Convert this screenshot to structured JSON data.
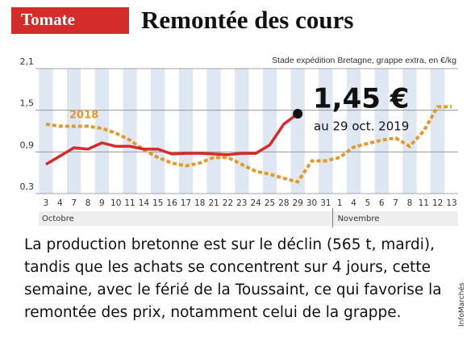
{
  "chart_data": {
    "type": "line",
    "tag": "Tomate",
    "title": "Remontée des cours",
    "subtitle": "Stade expédition Bretagne, grappe extra, en €/kg",
    "categories": [
      "3",
      "4",
      "7",
      "8",
      "9",
      "10",
      "11",
      "14",
      "15",
      "16",
      "17",
      "18",
      "21",
      "22",
      "23",
      "24",
      "25",
      "28",
      "29",
      "30",
      "31",
      "1",
      "4",
      "5",
      "6",
      "7",
      "8",
      "11",
      "12",
      "13"
    ],
    "months": [
      "Octobre",
      "Novembre"
    ],
    "series": [
      {
        "color": "#d42b2b",
        "dashed": false,
        "values": [
          0.72,
          0.84,
          0.96,
          0.94,
          1.03,
          0.98,
          0.98,
          0.94,
          0.94,
          0.87,
          0.88,
          0.88,
          0.87,
          0.86,
          0.88,
          0.88,
          1.0,
          1.3,
          1.45,
          null,
          null,
          null,
          null,
          null,
          null,
          null,
          null,
          null,
          null,
          null
        ]
      },
      {
        "name": "2018",
        "color": "#e39a2a",
        "dashed": true,
        "values": [
          1.3,
          1.27,
          1.27,
          1.27,
          1.24,
          1.17,
          1.07,
          0.93,
          0.82,
          0.74,
          0.7,
          0.74,
          0.82,
          0.82,
          0.72,
          0.62,
          0.58,
          0.52,
          0.47,
          0.77,
          0.77,
          0.82,
          0.97,
          1.02,
          1.07,
          1.1,
          0.98,
          1.2,
          1.55,
          1.55
        ]
      }
    ],
    "ylim": [
      0.3,
      2.1
    ],
    "yticks": [
      {
        "value": 0.3,
        "label": "0,3"
      },
      {
        "value": 0.9,
        "label": "0,9"
      },
      {
        "value": 1.5,
        "label": "1,5"
      },
      {
        "value": 2.1,
        "label": "2,1"
      }
    ],
    "grid": true,
    "annotations": [
      "1,45 €",
      "au 29 oct. 2019"
    ],
    "paragraph": [
      "La production bretonne est sur le déclin (565 t, mardi),",
      "tandis que les achats se concentrent sur 4 jours, cette",
      "semaine, avec le férié de la Toussaint, ce qui favorise la",
      "remontée des prix, notamment celui de la grappe."
    ],
    "credit": "InfoMarchés"
  }
}
